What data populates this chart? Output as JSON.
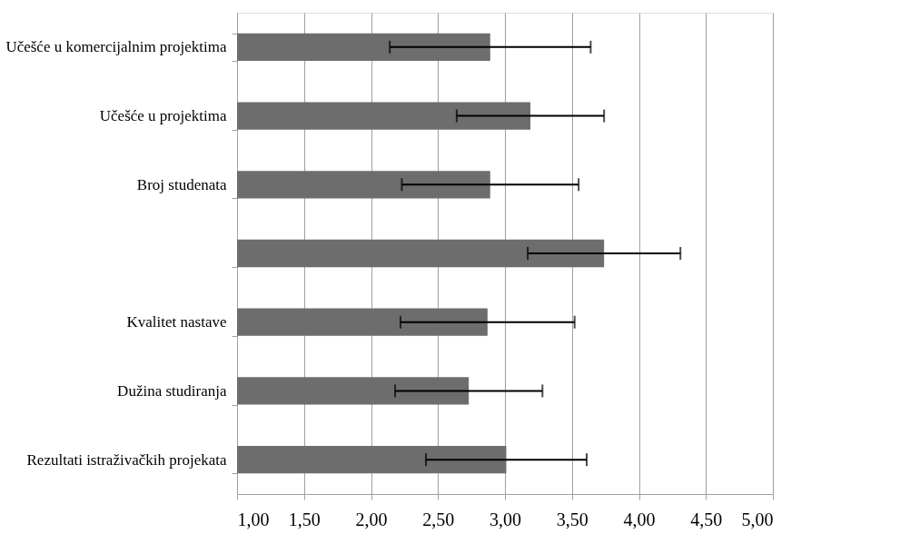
{
  "chart_data": {
    "type": "bar",
    "orientation": "horizontal",
    "categories": [
      "Učešće u komercijalnim projektima",
      "Učešće u projektima",
      "Broj studenata",
      null,
      "Kvalitet nastave",
      "Dužina studiranja",
      "Rezultati istraživačkih projekata"
    ],
    "values": [
      2.89,
      3.19,
      2.89,
      3.74,
      2.87,
      2.73,
      3.01
    ],
    "errors": [
      0.75,
      0.55,
      0.66,
      0.57,
      0.65,
      0.55,
      0.6
    ],
    "color": "#6d6d6d",
    "xlim": [
      1,
      5
    ],
    "xticks": [
      {
        "value": 1,
        "label": "1,00"
      },
      {
        "value": 1.5,
        "label": "1,50"
      },
      {
        "value": 2,
        "label": "2,00"
      },
      {
        "value": 2.5,
        "label": "2,50"
      },
      {
        "value": 3,
        "label": "3,00"
      },
      {
        "value": 3.5,
        "label": "3,50"
      },
      {
        "value": 4,
        "label": "4,00"
      },
      {
        "value": 4.5,
        "label": "4,50"
      },
      {
        "value": 5,
        "label": "5,00"
      }
    ],
    "grid": "x"
  }
}
